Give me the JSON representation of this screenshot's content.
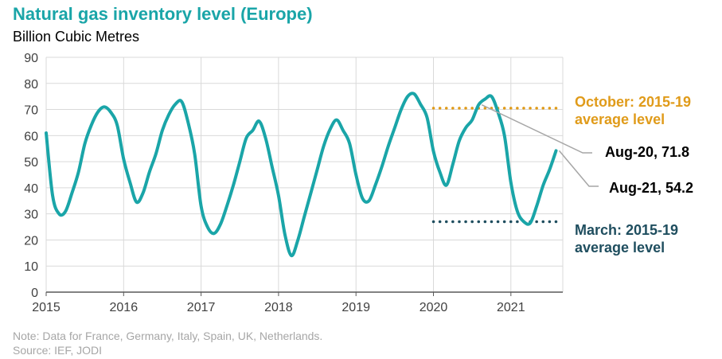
{
  "chart_data": {
    "type": "line",
    "title": "Natural gas inventory level (Europe)",
    "ylabel": "Billion Cubic Metres",
    "ylim": [
      0,
      90
    ],
    "yticks": [
      0,
      10,
      20,
      30,
      40,
      50,
      60,
      70,
      80,
      90
    ],
    "xlim": [
      2015,
      2021.67
    ],
    "xticks": [
      "2015",
      "2016",
      "2017",
      "2018",
      "2019",
      "2020",
      "2021"
    ],
    "series": [
      {
        "name": "Natural gas inventory",
        "color": "#1aa5a8",
        "x": [
          2015.0,
          2015.083,
          2015.167,
          2015.25,
          2015.333,
          2015.417,
          2015.5,
          2015.583,
          2015.667,
          2015.75,
          2015.833,
          2015.917,
          2016.0,
          2016.083,
          2016.167,
          2016.25,
          2016.333,
          2016.417,
          2016.5,
          2016.583,
          2016.667,
          2016.75,
          2016.833,
          2016.917,
          2017.0,
          2017.083,
          2017.167,
          2017.25,
          2017.333,
          2017.417,
          2017.5,
          2017.583,
          2017.667,
          2017.75,
          2017.833,
          2017.917,
          2018.0,
          2018.083,
          2018.167,
          2018.25,
          2018.333,
          2018.417,
          2018.5,
          2018.583,
          2018.667,
          2018.75,
          2018.833,
          2018.917,
          2019.0,
          2019.083,
          2019.167,
          2019.25,
          2019.333,
          2019.417,
          2019.5,
          2019.583,
          2019.667,
          2019.75,
          2019.833,
          2019.917,
          2020.0,
          2020.083,
          2020.167,
          2020.25,
          2020.333,
          2020.417,
          2020.5,
          2020.583,
          2020.667,
          2020.75,
          2020.833,
          2020.917,
          2021.0,
          2021.083,
          2021.167,
          2021.25,
          2021.333,
          2021.417,
          2021.5,
          2021.583
        ],
        "values": [
          61,
          37,
          30,
          31,
          38,
          46,
          57,
          64,
          69,
          71,
          69,
          64,
          51,
          42,
          34.5,
          38,
          46,
          53,
          62,
          68,
          72,
          73,
          65,
          53,
          33,
          25,
          22.5,
          26,
          33,
          41,
          50,
          59,
          62,
          65.5,
          59,
          48,
          37,
          22,
          14,
          20,
          29,
          38,
          47,
          56,
          62.5,
          66,
          62,
          57,
          45,
          36,
          35,
          41,
          48,
          56,
          63,
          70,
          75,
          76,
          72,
          67,
          54,
          46,
          41,
          49,
          58,
          63,
          66,
          71.8,
          74,
          75,
          69,
          60,
          42,
          31,
          27,
          26.5,
          33,
          41,
          47,
          54.2
        ]
      }
    ],
    "reference_lines": [
      {
        "name": "October: 2015-19 average level",
        "value": 70.5,
        "x_start": 2020.0,
        "x_end": 2021.67,
        "color": "#e09b1a",
        "style": "dotted"
      },
      {
        "name": "March: 2015-19 average level",
        "value": 27,
        "x_start": 2020.0,
        "x_end": 2021.67,
        "color": "#1f4e5f",
        "style": "dotted"
      }
    ],
    "annotations": [
      {
        "text": "Aug-20, 71.8",
        "x": 2020.583,
        "y": 71.8
      },
      {
        "text": "Aug-21, 54.2",
        "x": 2021.583,
        "y": 54.2
      }
    ],
    "grid": true
  },
  "labels": {
    "october_line1": "October: 2015-19",
    "october_line2": "average level",
    "march_line1": "March: 2015-19",
    "march_line2": "average level",
    "aug20": "Aug-20, 71.8",
    "aug21": "Aug-21, 54.2"
  },
  "notes": {
    "note": "Note: Data for France, Germany, Italy, Spain, UK, Netherlands.",
    "source": "Source: IEF, JODI"
  }
}
